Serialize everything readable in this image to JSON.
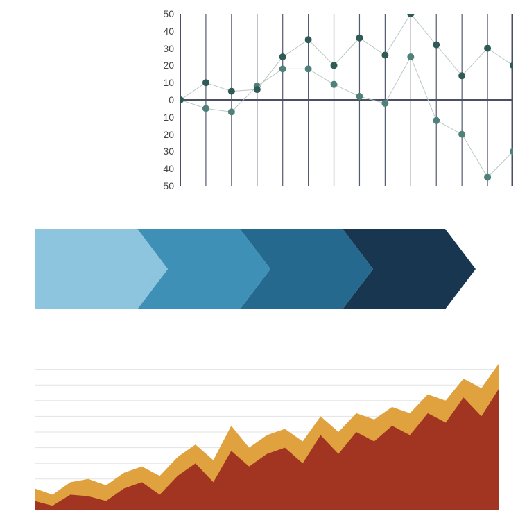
{
  "scatter_chart": {
    "type": "scatter",
    "ylim": [
      -50,
      50
    ],
    "ytick_step": 10,
    "tick_labels": [
      "50",
      "40",
      "30",
      "20",
      "10",
      "0",
      "10",
      "20",
      "30",
      "40",
      "50"
    ],
    "tick_values": [
      50,
      40,
      30,
      20,
      10,
      0,
      -10,
      -20,
      -30,
      -40,
      -50
    ],
    "label_fontsize": 14,
    "label_color": "#444444",
    "n_columns": 14,
    "vgrid_color": "#555b6e",
    "vgrid_width": 1.2,
    "axis_color": "#4a4f61",
    "axis_width": 2,
    "marker_radius": 5,
    "line_color": "#b7c8c2",
    "background_color": "#ffffff",
    "series_a": {
      "color": "#2f5a55",
      "values": [
        0,
        10,
        5,
        6,
        25,
        35,
        20,
        36,
        26,
        50,
        32,
        14,
        30,
        20
      ]
    },
    "series_b": {
      "color": "#4f817a",
      "values": [
        0,
        -5,
        -7,
        8,
        18,
        18,
        9,
        2,
        -2,
        25,
        -12,
        -20,
        -45,
        -30
      ]
    }
  },
  "arrow_bar": {
    "type": "infographic",
    "segment_count": 4,
    "segment_width": 148,
    "chevron_depth": 44,
    "height": 116,
    "colors": [
      "#8dc5de",
      "#3e90b7",
      "#256a8e",
      "#193651"
    ],
    "background_color": "#ffffff"
  },
  "area_chart": {
    "type": "area",
    "background_color": "#ffffff",
    "grid_color": "#e3e3e3",
    "grid_lines": 10,
    "ylim": [
      0,
      100
    ],
    "series_back": {
      "color": "#dfa23e",
      "values": [
        14,
        10,
        18,
        20,
        16,
        24,
        28,
        22,
        34,
        42,
        32,
        54,
        40,
        48,
        52,
        44,
        60,
        50,
        62,
        58,
        66,
        62,
        74,
        70,
        84,
        78,
        94
      ]
    },
    "series_front": {
      "color": "#a13522",
      "values": [
        6,
        3,
        10,
        9,
        6,
        14,
        18,
        10,
        22,
        30,
        18,
        38,
        28,
        36,
        40,
        30,
        48,
        36,
        50,
        44,
        54,
        48,
        62,
        56,
        72,
        60,
        78
      ]
    }
  }
}
